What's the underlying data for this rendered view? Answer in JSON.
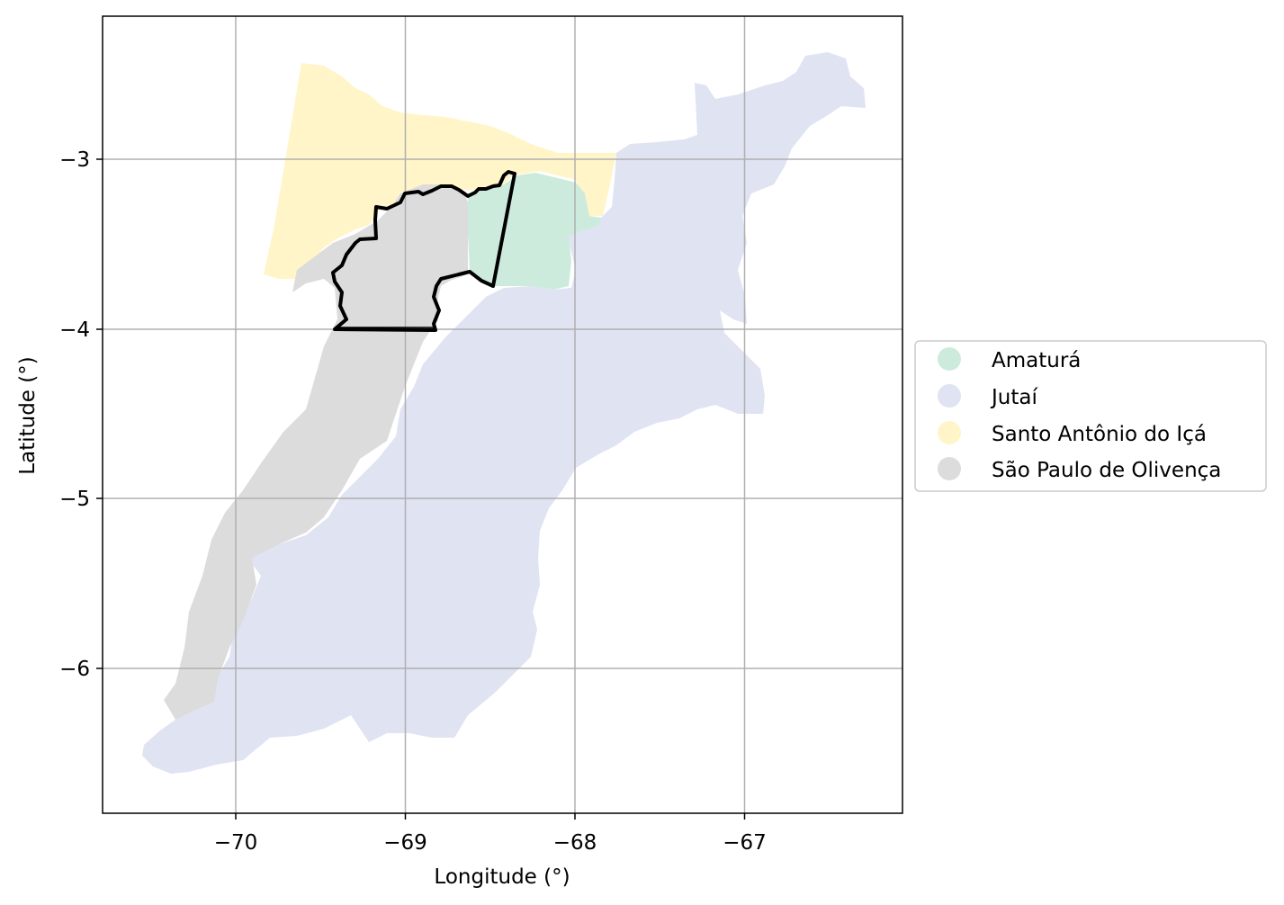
{
  "map": {
    "xlabel": "Longitude (°)",
    "ylabel": "Latitude (°)",
    "xlim": [
      -70.8,
      -66.1
    ],
    "ylim": [
      -6.85,
      -2.15
    ],
    "grid": true,
    "x_ticks": [
      -70,
      -69,
      -68,
      -67
    ],
    "y_ticks": [
      -3,
      -4,
      -5,
      -6
    ],
    "x_tick_labels": [
      "−70",
      "−69",
      "−68",
      "−67"
    ],
    "y_tick_labels": [
      "−3",
      "−4",
      "−5",
      "−6"
    ],
    "legend_placement": "center-right outside axes",
    "highlighted_outline": "black outline around a region spanning parts of Amaturá and São Paulo de Olivença"
  },
  "legend": {
    "items": [
      {
        "label": "Amaturá",
        "color": "#cdebdc"
      },
      {
        "label": "Jutaí",
        "color": "#dfe3f2"
      },
      {
        "label": "Santo Antônio do Içá",
        "color": "#fff5c8"
      },
      {
        "label": "São Paulo de Olivença",
        "color": "#dcdcdc"
      }
    ]
  },
  "colors": {
    "amatura": "#cdebdc",
    "jutai": "#dfe3f2",
    "santo_antonio": "#fff5c8",
    "sao_paulo": "#dcdcdc",
    "outline": "#000000",
    "grid": "#b0b0b0"
  }
}
